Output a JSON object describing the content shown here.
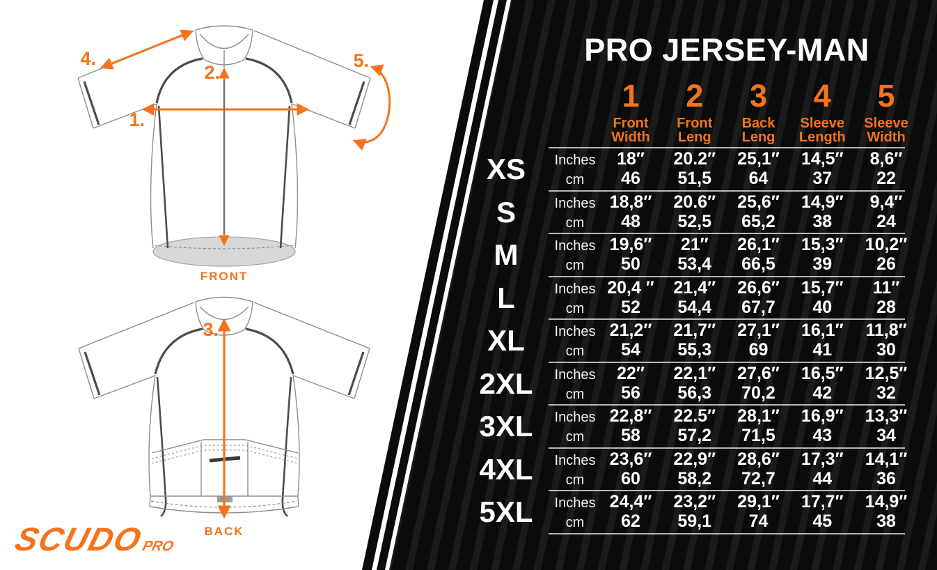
{
  "brand": {
    "logo_text": "SCUDO",
    "logo_sub": "PRO"
  },
  "diagram": {
    "front_caption": "FRONT",
    "back_caption": "BACK",
    "markers": {
      "m1": "1.",
      "m2": "2.",
      "m3": "3.",
      "m4": "4.",
      "m5": "5."
    }
  },
  "colors": {
    "accent": "#F4731C",
    "panel": "#0B0B0B",
    "stripe": "#1B1B1B",
    "divider": "#D6D6D6",
    "text": "#FFFFFF",
    "hem_fill": "#D8D8D8"
  },
  "chart_data": {
    "type": "table",
    "title": "PRO JERSEY-MAN",
    "unit_labels": [
      "Inches",
      "cm"
    ],
    "columns": [
      {
        "num": "1",
        "line1": "Front",
        "line2": "Width"
      },
      {
        "num": "2",
        "line1": "Front",
        "line2": "Leng"
      },
      {
        "num": "3",
        "line1": "Back",
        "line2": "Leng"
      },
      {
        "num": "4",
        "line1": "Sleeve",
        "line2": "Length"
      },
      {
        "num": "5",
        "line1": "Sleeve",
        "line2": "Width"
      }
    ],
    "rows": [
      {
        "size": "XS",
        "inches": [
          "18″",
          "20.2″",
          "25,1″",
          "14,5″",
          "8,6″"
        ],
        "cm": [
          "46",
          "51,5",
          "64",
          "37",
          "22"
        ]
      },
      {
        "size": "S",
        "inches": [
          "18,8″",
          "20.6″",
          "25,6″",
          "14,9″",
          "9,4″"
        ],
        "cm": [
          "48",
          "52,5",
          "65,2",
          "38",
          "24"
        ]
      },
      {
        "size": "M",
        "inches": [
          "19,6″",
          "21″",
          "26,1″",
          "15,3″",
          "10,2″"
        ],
        "cm": [
          "50",
          "53,4",
          "66,5",
          "39",
          "26"
        ]
      },
      {
        "size": "L",
        "inches": [
          "20,4 ″",
          "21,4″",
          "26,6″",
          "15,7″",
          "11″"
        ],
        "cm": [
          "52",
          "54,4",
          "67,7",
          "40",
          "28"
        ]
      },
      {
        "size": "XL",
        "inches": [
          "21,2″",
          "21,7″",
          "27,1″",
          "16,1″",
          "11,8″"
        ],
        "cm": [
          "54",
          "55,3",
          "69",
          "41",
          "30"
        ]
      },
      {
        "size": "2XL",
        "inches": [
          "22″",
          "22,1″",
          "27,6″",
          "16,5″",
          "12,5″"
        ],
        "cm": [
          "56",
          "56,3",
          "70,2",
          "42",
          "32"
        ]
      },
      {
        "size": "3XL",
        "inches": [
          "22,8″",
          "22.5″",
          "28,1″",
          "16,9″",
          "13,3″"
        ],
        "cm": [
          "58",
          "57,2",
          "71,5",
          "43",
          "34"
        ]
      },
      {
        "size": "4XL",
        "inches": [
          "23,6″",
          "22,9″",
          "28,6″",
          "17,3″",
          "14,1″"
        ],
        "cm": [
          "60",
          "58,2",
          "72,7",
          "44",
          "36"
        ]
      },
      {
        "size": "5XL",
        "inches": [
          "24,4″",
          "23,2″",
          "29,1″",
          "17,7″",
          "14,9″"
        ],
        "cm": [
          "62",
          "59,1",
          "74",
          "45",
          "38"
        ]
      }
    ]
  }
}
